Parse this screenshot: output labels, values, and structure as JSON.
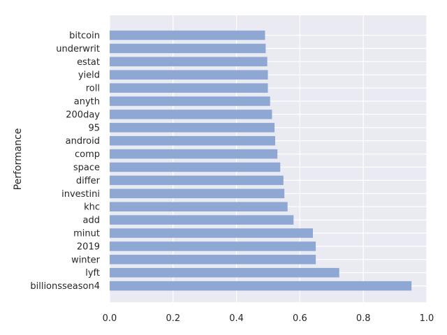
{
  "chart_data": {
    "type": "bar",
    "orientation": "horizontal",
    "title": "",
    "xlabel": "",
    "ylabel": "Performance",
    "xlim": [
      0,
      1.0
    ],
    "xticks": [
      "0.0",
      "0.2",
      "0.4",
      "0.6",
      "0.8",
      "1.0"
    ],
    "grid": true,
    "colors": {
      "bar": "#8fa7d3",
      "background": "#eaeaf2",
      "grid": "#ffffff"
    },
    "categories": [
      "bitcoin",
      "underwrit",
      "estat",
      "yield",
      "roll",
      "anyth",
      "200day",
      "95",
      "android",
      "comp",
      "space",
      "differ",
      "investini",
      "khc",
      "add",
      "minut",
      "2019",
      "winter",
      "lyft",
      "billionsseason4"
    ],
    "values": [
      0.49,
      0.492,
      0.497,
      0.499,
      0.499,
      0.506,
      0.512,
      0.52,
      0.522,
      0.529,
      0.538,
      0.548,
      0.551,
      0.561,
      0.58,
      0.641,
      0.65,
      0.65,
      0.724,
      0.952
    ]
  }
}
